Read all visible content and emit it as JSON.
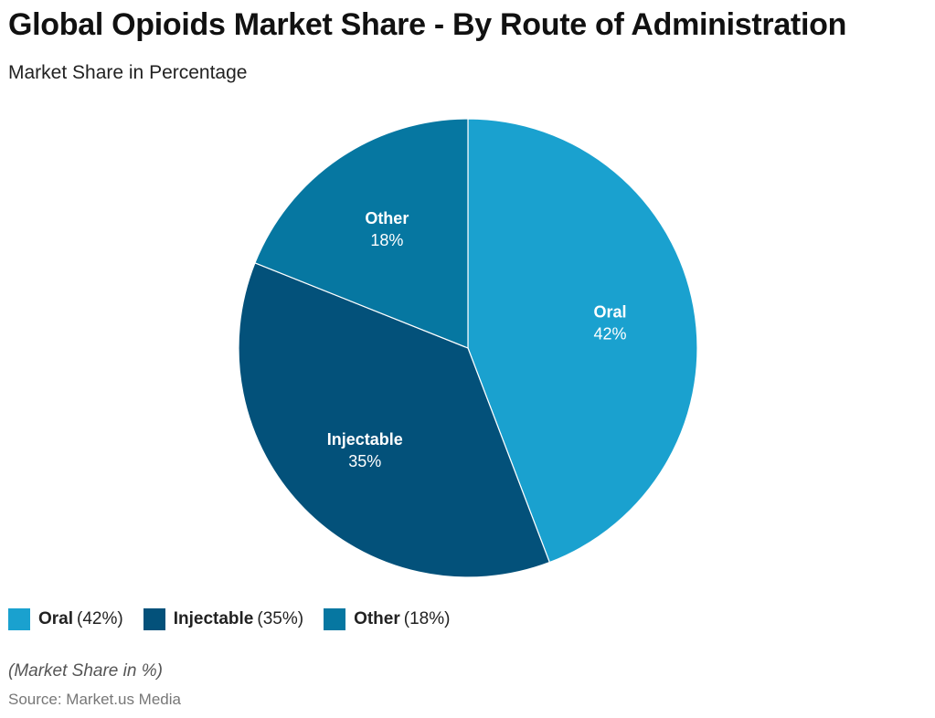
{
  "chart_data": {
    "type": "pie",
    "title": "Global Opioids Market Share - By Route of Administration",
    "subtitle": "Market Share in Percentage",
    "slices": [
      {
        "label": "Oral",
        "value": 42,
        "value_label": "42%",
        "legend_value": "(42%)",
        "color": "#1aa1cf"
      },
      {
        "label": "Injectable",
        "value": 35,
        "value_label": "35%",
        "legend_value": "(35%)",
        "color": "#03517a"
      },
      {
        "label": "Other",
        "value": 18,
        "value_label": "18%",
        "legend_value": "(18%)",
        "color": "#0677a1"
      }
    ],
    "start_angle": "top, clockwise",
    "legend_position": "bottom-left"
  },
  "footer": {
    "note": "(Market Share in %)",
    "source": "Source: Market.us Media"
  }
}
